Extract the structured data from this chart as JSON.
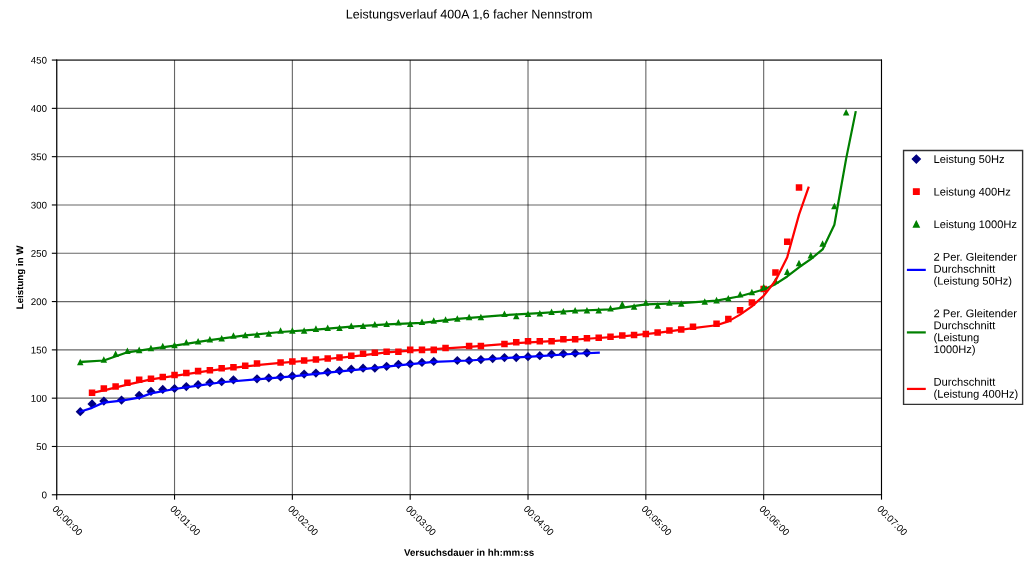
{
  "chart_data": {
    "type": "scatter",
    "title": "Leistungsverlauf 400A 1,6 facher Nennstrom",
    "xlabel": "Versuchsdauer in hh:mm:ss",
    "ylabel": "Leistung in W",
    "xlim": [
      0,
      7
    ],
    "xticks": [
      {
        "value": 0,
        "label": "00:00:00"
      },
      {
        "value": 1,
        "label": "00:01:00"
      },
      {
        "value": 2,
        "label": "00:02:00"
      },
      {
        "value": 3,
        "label": "00:03:00"
      },
      {
        "value": 4,
        "label": "00:04:00"
      },
      {
        "value": 5,
        "label": "00:05:00"
      },
      {
        "value": 6,
        "label": "00:06:00"
      },
      {
        "value": 7,
        "label": "00:07:00"
      }
    ],
    "ylim": [
      0,
      450
    ],
    "yticks": [
      0,
      50,
      100,
      150,
      200,
      250,
      300,
      350,
      400,
      450
    ],
    "grid": true,
    "legend": "right",
    "series": [
      {
        "name": "Leistung 50Hz",
        "marker": "diamond",
        "color": "#000080",
        "x": [
          0.2,
          0.3,
          0.4,
          0.55,
          0.7,
          0.8,
          0.9,
          1.0,
          1.1,
          1.2,
          1.3,
          1.4,
          1.5,
          1.7,
          1.8,
          1.9,
          2.0,
          2.1,
          2.2,
          2.3,
          2.4,
          2.5,
          2.6,
          2.7,
          2.8,
          2.9,
          3.0,
          3.1,
          3.2,
          3.4,
          3.5,
          3.6,
          3.7,
          3.8,
          3.9,
          4.0,
          4.1,
          4.2,
          4.3,
          4.4,
          4.5
        ],
        "values": [
          86,
          94,
          97,
          98,
          103,
          107,
          109,
          110,
          112,
          114,
          116,
          117,
          119,
          120,
          121,
          122,
          123,
          125,
          126,
          127,
          128.5,
          130,
          131,
          131,
          133,
          135,
          135.5,
          137,
          138,
          139,
          139,
          140,
          141,
          142,
          142,
          143,
          144,
          145.5,
          146,
          146.5,
          147
        ]
      },
      {
        "name": "Leistung 400Hz",
        "marker": "square",
        "color": "#ff0000",
        "x": [
          0.3,
          0.4,
          0.5,
          0.6,
          0.7,
          0.8,
          0.9,
          1.0,
          1.1,
          1.2,
          1.3,
          1.4,
          1.5,
          1.6,
          1.7,
          1.9,
          2.0,
          2.1,
          2.2,
          2.3,
          2.4,
          2.5,
          2.6,
          2.7,
          2.8,
          2.9,
          3.0,
          3.1,
          3.2,
          3.3,
          3.5,
          3.6,
          3.8,
          3.9,
          4.0,
          4.1,
          4.2,
          4.3,
          4.4,
          4.5,
          4.6,
          4.7,
          4.8,
          4.9,
          5.0,
          5.1,
          5.2,
          5.3,
          5.4,
          5.6,
          5.7,
          5.8,
          5.9,
          6.0,
          6.1,
          6.2,
          6.3
        ],
        "values": [
          105.5,
          110,
          112,
          116,
          119,
          120,
          122,
          124,
          126,
          128,
          129,
          131,
          132,
          133.5,
          136,
          137,
          138,
          139,
          140,
          141,
          142,
          144,
          146,
          147,
          148,
          148,
          150,
          150,
          150,
          152,
          154,
          154,
          156,
          158,
          159,
          159,
          159,
          161,
          161,
          162,
          162.5,
          163.5,
          165,
          165.5,
          166.5,
          168,
          170,
          171,
          174,
          177,
          182,
          191,
          199,
          213,
          230,
          262,
          318
        ]
      },
      {
        "name": "Leistung 1000Hz",
        "marker": "triangle",
        "color": "#008000",
        "x": [
          0.2,
          0.4,
          0.5,
          0.6,
          0.7,
          0.8,
          0.9,
          1.0,
          1.1,
          1.2,
          1.3,
          1.4,
          1.5,
          1.6,
          1.7,
          1.8,
          1.9,
          2.0,
          2.1,
          2.2,
          2.3,
          2.4,
          2.5,
          2.6,
          2.7,
          2.8,
          2.9,
          3.0,
          3.1,
          3.2,
          3.3,
          3.4,
          3.5,
          3.6,
          3.8,
          3.9,
          4.0,
          4.1,
          4.2,
          4.3,
          4.4,
          4.5,
          4.6,
          4.7,
          4.8,
          4.9,
          5.0,
          5.1,
          5.2,
          5.3,
          5.5,
          5.6,
          5.7,
          5.8,
          5.9,
          6.0,
          6.1,
          6.2,
          6.3,
          6.4,
          6.5,
          6.6,
          6.7
        ],
        "values": [
          137.5,
          140,
          146,
          149,
          150,
          152,
          154,
          155,
          158,
          159,
          161,
          162,
          165,
          165.5,
          166,
          167,
          170,
          170,
          170,
          172,
          173,
          173,
          175,
          175,
          176.5,
          177,
          178.5,
          177,
          179,
          180.5,
          181.5,
          182.5,
          184,
          184,
          187.5,
          185,
          187.5,
          188,
          189.5,
          190,
          191,
          191,
          191,
          193,
          197.5,
          195,
          199,
          196,
          199,
          198,
          200,
          201.5,
          203.5,
          207.5,
          210,
          215,
          221.5,
          231,
          240,
          248,
          260,
          299,
          396
        ]
      },
      {
        "name": "2 Per. Gleitender\nDurchschnitt\n(Leistung 50Hz)",
        "type": "line",
        "marker": "none",
        "color": "#0000ff",
        "x": [
          0.2,
          0.3,
          0.4,
          0.55,
          0.7,
          0.8,
          1.0,
          1.2,
          1.4,
          1.7,
          2.0,
          2.3,
          2.6,
          2.9,
          3.2,
          3.5,
          3.8,
          4.1,
          4.4,
          4.6
        ],
        "values": [
          86,
          90,
          95.5,
          97.5,
          100.5,
          105,
          109.5,
          113,
          116.5,
          119.5,
          122.5,
          126.5,
          130,
          134,
          137.5,
          139,
          141.5,
          143.5,
          146,
          147
        ]
      },
      {
        "name": "2 Per. Gleitender\nDurchschnitt\n(Leistung\n1000Hz)",
        "type": "line",
        "marker": "none",
        "color": "#008000",
        "x": [
          0.2,
          0.4,
          0.6,
          0.8,
          1.0,
          1.3,
          1.6,
          1.9,
          2.2,
          2.5,
          2.8,
          3.1,
          3.4,
          3.8,
          4.1,
          4.4,
          4.7,
          5.0,
          5.3,
          5.6,
          5.8,
          6.0,
          6.1,
          6.2,
          6.3,
          6.4,
          6.5,
          6.6,
          6.7,
          6.78
        ],
        "values": [
          137.5,
          139,
          147.5,
          151,
          154.5,
          160,
          165,
          168.5,
          171,
          174,
          176.5,
          178,
          182,
          186,
          188,
          190.5,
          192,
          197,
          198.5,
          201,
          205.5,
          212.5,
          218,
          226,
          235.5,
          244,
          254,
          279.5,
          348,
          396
        ]
      },
      {
        "name": "Durchschnitt\n(Leistung 400Hz)",
        "type": "line",
        "marker": "none",
        "color": "#ff0000",
        "x": [
          0.3,
          0.4,
          0.6,
          0.8,
          1.0,
          1.3,
          1.6,
          1.9,
          2.2,
          2.5,
          2.8,
          3.1,
          3.5,
          3.9,
          4.2,
          4.5,
          4.8,
          5.1,
          5.4,
          5.6,
          5.7,
          5.8,
          5.9,
          6.0,
          6.1,
          6.2,
          6.3,
          6.38
        ],
        "values": [
          105.5,
          108,
          114,
          119.5,
          123,
          128.5,
          133,
          136.5,
          139.5,
          143,
          147.5,
          150,
          153,
          157,
          159,
          161.5,
          164,
          167.5,
          172.5,
          175.5,
          179.5,
          186.5,
          195,
          206,
          221.5,
          246,
          290,
          318
        ]
      }
    ]
  }
}
